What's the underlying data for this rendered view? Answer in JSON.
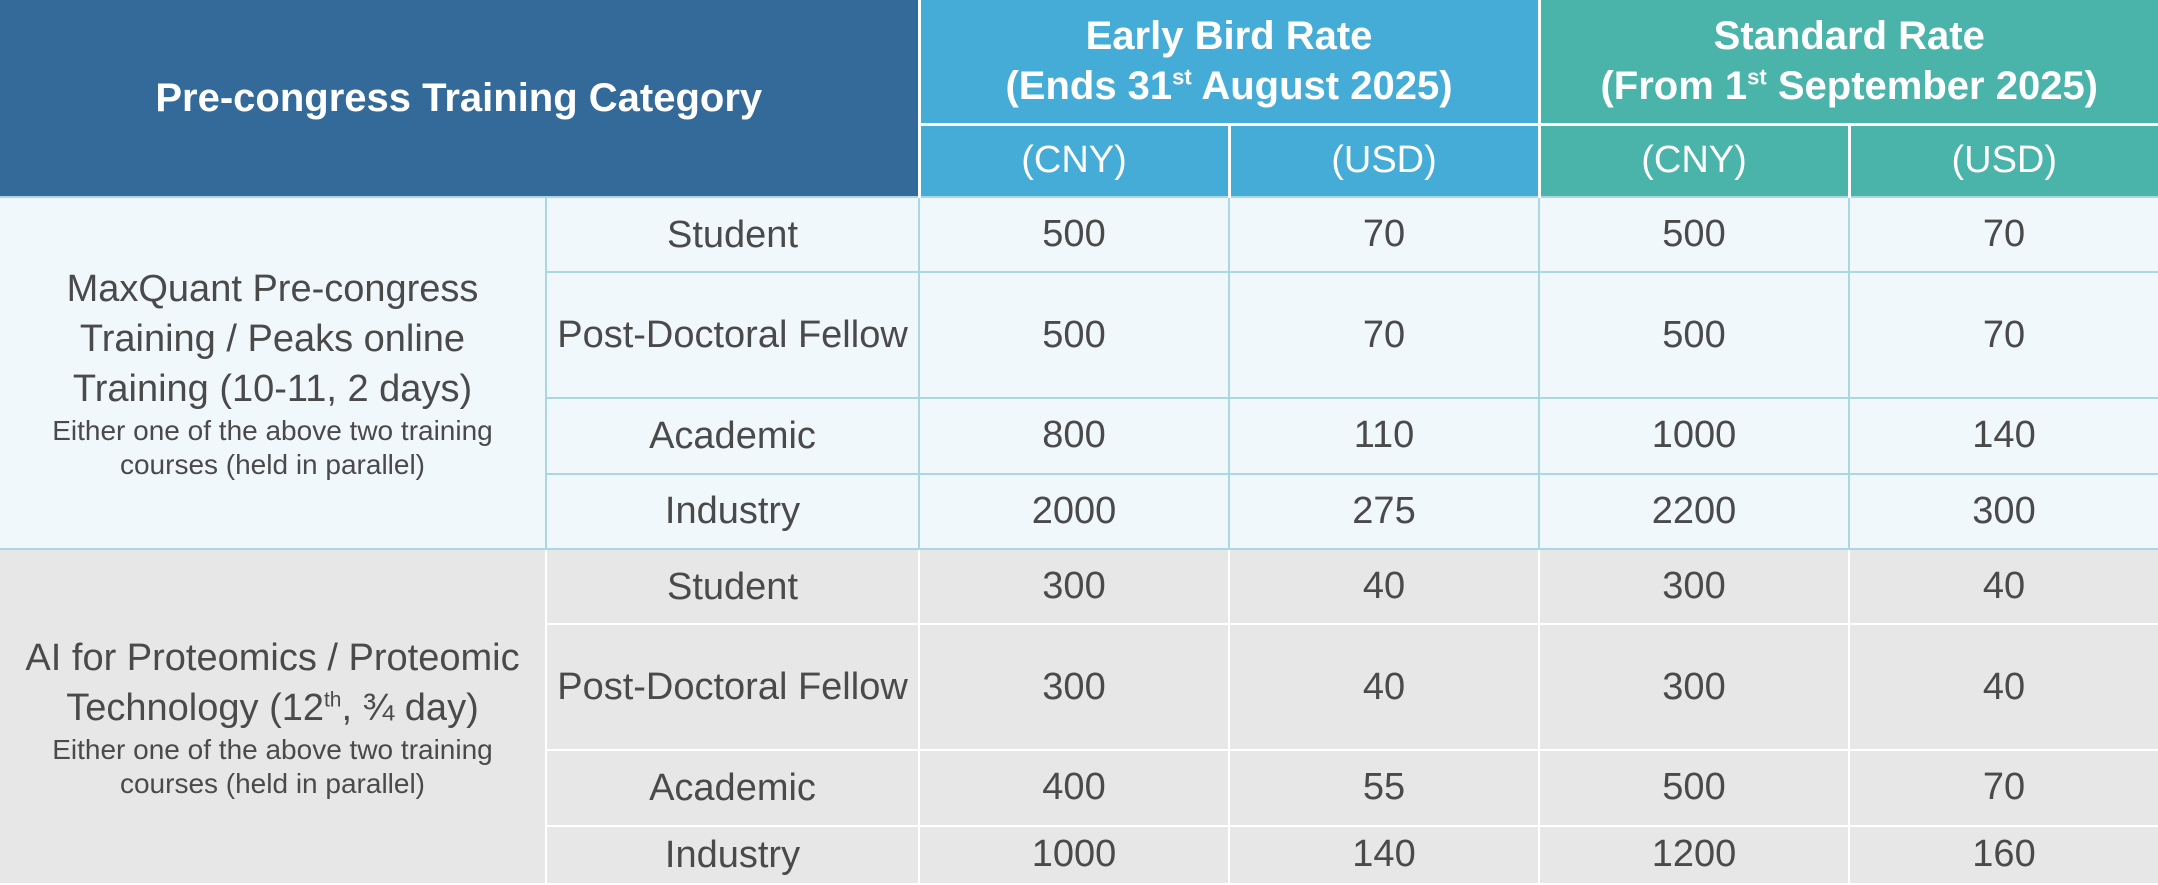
{
  "header": {
    "category_label": "Pre-congress Training Category",
    "early_bird": {
      "line1": "Early Bird Rate",
      "line2_pre": "(Ends 31",
      "line2_sup": "st",
      "line2_post": " August 2025)"
    },
    "standard": {
      "line1": "Standard Rate",
      "line2_pre": "(From 1",
      "line2_sup": "st",
      "line2_post": " September 2025)"
    },
    "currency": [
      "(CNY)",
      "(USD)",
      "(CNY)",
      "(USD)"
    ]
  },
  "groups": [
    {
      "name": "MaxQuant Pre-congress Training / Peaks online Training (10-11, 2 days)",
      "note": "Either one of the above two training courses (held in parallel)",
      "rows": [
        {
          "role": "Student",
          "early_cny": "500",
          "early_usd": "70",
          "std_cny": "500",
          "std_usd": "70"
        },
        {
          "role": "Post-Doctoral Fellow",
          "early_cny": "500",
          "early_usd": "70",
          "std_cny": "500",
          "std_usd": "70"
        },
        {
          "role": "Academic",
          "early_cny": "800",
          "early_usd": "110",
          "std_cny": "1000",
          "std_usd": "140"
        },
        {
          "role": "Industry",
          "early_cny": "2000",
          "early_usd": "275",
          "std_cny": "2200",
          "std_usd": "300"
        }
      ]
    },
    {
      "name_pre": "AI for Proteomics / Proteomic Technology (12",
      "name_sup": "th",
      "name_post": ", ¾ day)",
      "note": "Either one of the above two training courses (held in parallel)",
      "rows": [
        {
          "role": "Student",
          "early_cny": "300",
          "early_usd": "40",
          "std_cny": "300",
          "std_usd": "40"
        },
        {
          "role": "Post-Doctoral Fellow",
          "early_cny": "300",
          "early_usd": "40",
          "std_cny": "300",
          "std_usd": "40"
        },
        {
          "role": "Academic",
          "early_cny": "400",
          "early_usd": "55",
          "std_cny": "500",
          "std_usd": "70"
        },
        {
          "role": "Industry",
          "early_cny": "1000",
          "early_usd": "140",
          "std_cny": "1200",
          "std_usd": "160"
        }
      ]
    }
  ]
}
